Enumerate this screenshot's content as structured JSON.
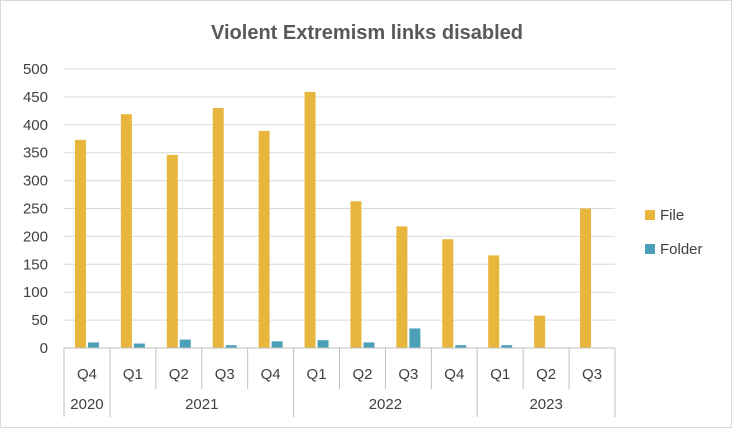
{
  "chart_data": {
    "type": "bar",
    "title": "Violent Extremism links disabled",
    "xlabel": "",
    "ylabel": "",
    "ylim": [
      0,
      500
    ],
    "yticks": [
      "0",
      "50",
      "100",
      "150",
      "200",
      "250",
      "300",
      "350",
      "400",
      "450",
      "500"
    ],
    "grid": true,
    "legend_position": "right",
    "categories": [
      "Q4",
      "Q1",
      "Q2",
      "Q3",
      "Q4",
      "Q1",
      "Q2",
      "Q3",
      "Q4",
      "Q1",
      "Q2",
      "Q3"
    ],
    "year_groups": [
      {
        "label": "2020",
        "count": 1
      },
      {
        "label": "2021",
        "count": 4
      },
      {
        "label": "2022",
        "count": 4
      },
      {
        "label": "2023",
        "count": 3
      }
    ],
    "series": [
      {
        "name": "File",
        "color": "#E8B53D",
        "values": [
          373,
          419,
          346,
          430,
          389,
          459,
          263,
          218,
          195,
          166,
          58,
          250
        ]
      },
      {
        "name": "Folder",
        "color": "#4BA0B8",
        "values": [
          10,
          8,
          15,
          5,
          12,
          14,
          10,
          35,
          5,
          5,
          0,
          0
        ]
      }
    ]
  }
}
